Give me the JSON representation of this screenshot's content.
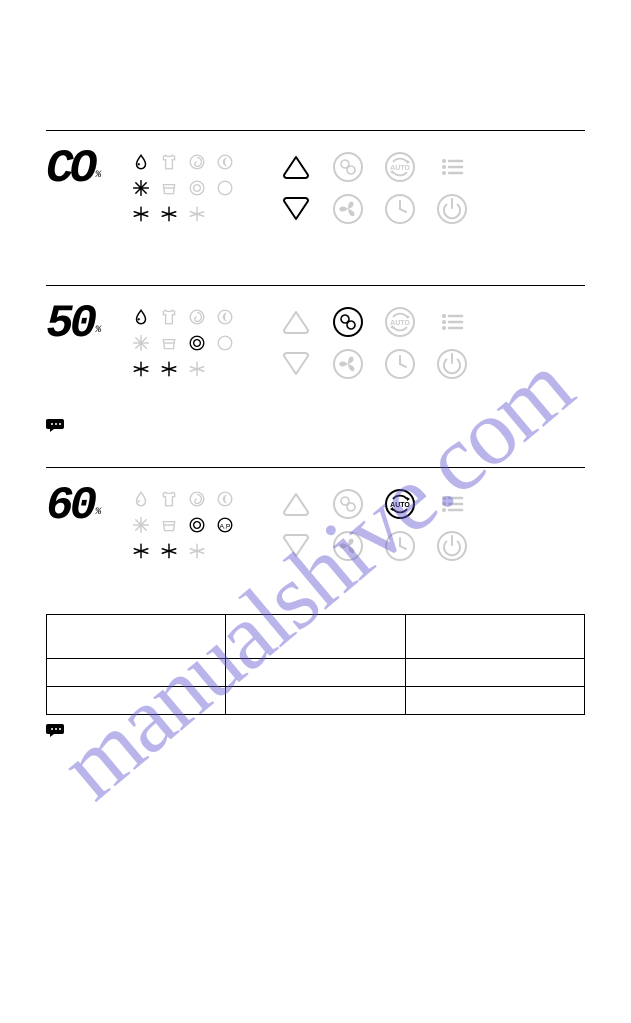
{
  "watermark": "manualshive.com",
  "panels": [
    {
      "digits": "CO",
      "pct": "%",
      "icons": [
        {
          "glyph": "drop",
          "dark": true
        },
        {
          "glyph": "shirt",
          "dark": false
        },
        {
          "glyph": "spiral",
          "dark": false
        },
        {
          "glyph": "moon",
          "dark": false
        },
        {
          "glyph": "snow6",
          "dark": true
        },
        {
          "glyph": "bucket",
          "dark": false
        },
        {
          "glyph": "target",
          "dark": false
        },
        {
          "glyph": "circle",
          "dark": false
        },
        {
          "glyph": "snow5a",
          "dark": true
        },
        {
          "glyph": "snow5b",
          "dark": true
        },
        {
          "glyph": "snow5c",
          "dark": false
        },
        {
          "glyph": "blank",
          "dark": false
        }
      ],
      "controls": [
        {
          "type": "tri-up",
          "active": true
        },
        {
          "type": "chain",
          "active": false
        },
        {
          "type": "auto",
          "active": false
        },
        {
          "type": "menu",
          "active": false
        },
        {
          "type": "tri-down",
          "active": true
        },
        {
          "type": "fan",
          "active": false
        },
        {
          "type": "clock",
          "active": false
        },
        {
          "type": "power",
          "active": false
        }
      ]
    },
    {
      "digits": "50",
      "pct": "%",
      "icons": [
        {
          "glyph": "drop",
          "dark": true
        },
        {
          "glyph": "shirt",
          "dark": false
        },
        {
          "glyph": "spiral",
          "dark": false
        },
        {
          "glyph": "moon",
          "dark": false
        },
        {
          "glyph": "snow6",
          "dark": false
        },
        {
          "glyph": "bucket",
          "dark": false
        },
        {
          "glyph": "target",
          "dark": true
        },
        {
          "glyph": "circle",
          "dark": false
        },
        {
          "glyph": "snow5a",
          "dark": true
        },
        {
          "glyph": "snow5b",
          "dark": true
        },
        {
          "glyph": "snow5c",
          "dark": false
        },
        {
          "glyph": "blank",
          "dark": false
        }
      ],
      "controls": [
        {
          "type": "tri-up",
          "active": false
        },
        {
          "type": "chain",
          "active": true
        },
        {
          "type": "auto",
          "active": false
        },
        {
          "type": "menu",
          "active": false
        },
        {
          "type": "tri-down",
          "active": false
        },
        {
          "type": "fan",
          "active": false
        },
        {
          "type": "clock",
          "active": false
        },
        {
          "type": "power",
          "active": false
        }
      ]
    },
    {
      "digits": "60",
      "pct": "%",
      "icons": [
        {
          "glyph": "drop",
          "dark": false
        },
        {
          "glyph": "shirt",
          "dark": false
        },
        {
          "glyph": "spiral",
          "dark": false
        },
        {
          "glyph": "moon",
          "dark": false
        },
        {
          "glyph": "snow6",
          "dark": false
        },
        {
          "glyph": "bucket",
          "dark": false
        },
        {
          "glyph": "target",
          "dark": true
        },
        {
          "glyph": "ap",
          "dark": true
        },
        {
          "glyph": "snow5a",
          "dark": true
        },
        {
          "glyph": "snow5b",
          "dark": true
        },
        {
          "glyph": "snow5c",
          "dark": false
        },
        {
          "glyph": "blank",
          "dark": false
        }
      ],
      "controls": [
        {
          "type": "tri-up",
          "active": false
        },
        {
          "type": "chain",
          "active": false
        },
        {
          "type": "auto",
          "active": true
        },
        {
          "type": "menu",
          "active": false
        },
        {
          "type": "tri-down",
          "active": false
        },
        {
          "type": "fan",
          "active": false
        },
        {
          "type": "clock",
          "active": false
        },
        {
          "type": "power",
          "active": false
        }
      ]
    }
  ],
  "table": {
    "cols": 3,
    "rows": [
      {
        "tall": true
      },
      {
        "tall": false
      },
      {
        "tall": false
      }
    ]
  },
  "colors": {
    "active": "#000000",
    "inactive": "#cccccc",
    "watermark": "rgba(100,90,210,0.45)",
    "bg": "#ffffff"
  }
}
